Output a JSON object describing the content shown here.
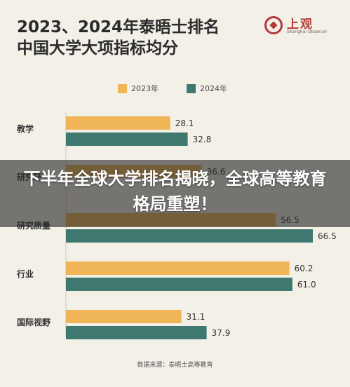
{
  "header": {
    "title_line1": "2023、2024年泰晤士排名",
    "title_line2": "中国大学大项指标均分"
  },
  "logo": {
    "name_cn": "上观",
    "name_en": "Shanghai Observer",
    "icon": "shanghai-observer-logo",
    "color": "#b23a3a"
  },
  "overlay": {
    "text": "下半年全球大学排名揭晓，全球高等教育格局重塑！"
  },
  "source": "数据来源：泰晤士高等教育",
  "chart_data": {
    "type": "bar",
    "orientation": "horizontal",
    "title": "2023、2024年泰晤士排名 中国大学大项指标均分",
    "categories": [
      "教学",
      "研究环境",
      "研究质量",
      "行业",
      "国际视野"
    ],
    "category_labels_visible": [
      "教学",
      "研究环",
      "研究质量",
      "行业",
      "国际视野"
    ],
    "series": [
      {
        "name": "2023年",
        "color": "#f0b556",
        "values": [
          28.1,
          36.6,
          56.5,
          60.2,
          31.1
        ],
        "labels": [
          "28.1",
          "36.6",
          "56.5",
          "60.2",
          "31.1"
        ]
      },
      {
        "name": "2024年",
        "color": "#3f786f",
        "values": [
          32.8,
          null,
          66.5,
          61.0,
          37.9
        ],
        "labels": [
          "32.8",
          "",
          "66.5",
          "61.0",
          "37.9"
        ]
      }
    ],
    "xlim": [
      0,
      70
    ],
    "grid": false,
    "legend_position": "top"
  }
}
